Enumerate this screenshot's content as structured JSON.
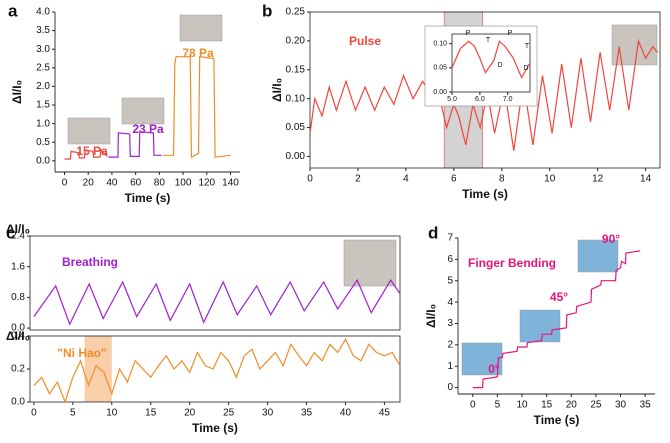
{
  "chart_data": [
    {
      "type": "line",
      "panel": "a",
      "xlabel": "Time (s)",
      "ylabel": "ΔI/I₀",
      "xlim": [
        -8,
        148
      ],
      "xticks": [
        0,
        20,
        40,
        60,
        80,
        100,
        120,
        140
      ],
      "ylim": [
        -0.3,
        4
      ],
      "yticks": [
        {
          "value": 0,
          "label": "0.0"
        },
        0.5,
        {
          "value": 1,
          "label": "1.0"
        },
        1.5,
        {
          "value": 2,
          "label": "2.0"
        },
        2.5,
        {
          "value": 3,
          "label": "3.0"
        },
        3.5,
        {
          "value": 4,
          "label": "4.0"
        }
      ],
      "series": [
        {
          "name": "15 Pa",
          "color": "#f0463c",
          "x": [
            0,
            5,
            5.5,
            12,
            12.5,
            17,
            17.5,
            24,
            24.5,
            30,
            30.5,
            36
          ],
          "values": [
            0.05,
            0.05,
            0.25,
            0.22,
            0.08,
            0.08,
            0.28,
            0.26,
            0.1,
            0.1,
            0.3,
            0.12
          ]
        },
        {
          "name": "23 Pa",
          "color": "#a020d0",
          "x": [
            37,
            45,
            45.5,
            55,
            55.5,
            63,
            63.5,
            75,
            75.5,
            82
          ],
          "values": [
            0.1,
            0.1,
            0.75,
            0.72,
            0.12,
            0.12,
            0.78,
            0.75,
            0.15,
            0.15
          ]
        },
        {
          "name": "78 Pa",
          "color": "#f08c28",
          "x": [
            83,
            92,
            93,
            94,
            106,
            107,
            113,
            114,
            126,
            127,
            140
          ],
          "values": [
            0.15,
            0.15,
            2.6,
            2.8,
            2.8,
            0.1,
            0.2,
            2.8,
            2.75,
            0.1,
            0.15
          ]
        }
      ]
    },
    {
      "type": "line",
      "panel": "b",
      "xlabel": "Time (s)",
      "ylabel": "ΔI/I₀",
      "xlim": [
        0,
        14.6
      ],
      "xticks": [
        0,
        2,
        4,
        6,
        8,
        10,
        12,
        14
      ],
      "ylim": [
        -0.02,
        0.25
      ],
      "yticks": [
        {
          "value": 0,
          "label": "0.00"
        },
        0.05,
        {
          "value": 0.1,
          "label": "0.10"
        },
        0.15,
        {
          "value": 0.2,
          "label": "0.20"
        },
        0.25
      ],
      "highlight": [
        5.6,
        7.2
      ],
      "series": [
        {
          "name": "Pulse",
          "color": "#f0463c",
          "x": [
            0,
            0.2,
            0.5,
            0.8,
            1.1,
            1.5,
            1.9,
            2.3,
            2.7,
            3.1,
            3.5,
            3.9,
            4.3,
            4.7,
            5.0,
            5.3,
            5.7,
            6.0,
            6.2,
            6.5,
            6.8,
            7.1,
            7.4,
            7.7,
            8.1,
            8.5,
            8.9,
            9.3,
            9.7,
            10.1,
            10.5,
            10.9,
            11.3,
            11.7,
            12.1,
            12.5,
            12.9,
            13.3,
            13.7,
            14.0,
            14.3,
            14.5
          ],
          "values": [
            0.04,
            0.1,
            0.07,
            0.12,
            0.08,
            0.13,
            0.08,
            0.12,
            0.08,
            0.12,
            0.09,
            0.14,
            0.1,
            0.13,
            0.11,
            0.12,
            0.05,
            0.09,
            0.07,
            0.02,
            0.09,
            0.05,
            0.11,
            0.04,
            0.12,
            0.01,
            0.13,
            0.02,
            0.14,
            0.04,
            0.16,
            0.05,
            0.17,
            0.06,
            0.18,
            0.08,
            0.19,
            0.08,
            0.2,
            0.17,
            0.19,
            0.18
          ]
        }
      ]
    },
    {
      "type": "line",
      "xlim": [
        5,
        7.8
      ],
      "xticks": [
        {
          "value": 5,
          "label": "5.0"
        },
        {
          "value": 6,
          "label": "6.0"
        },
        {
          "value": 7,
          "label": "7.0"
        }
      ],
      "ylim": [
        0,
        0.12
      ],
      "yticks": [
        {
          "value": 0,
          "label": "0.00"
        },
        0.05,
        {
          "value": 0.1,
          "label": "0.10"
        }
      ],
      "annotations": [
        "P",
        "T",
        "D",
        "P",
        "T",
        "D"
      ],
      "series": [
        {
          "color": "#f0463c",
          "x": [
            5.0,
            5.3,
            5.6,
            5.8,
            6.0,
            6.2,
            6.5,
            6.7,
            6.9,
            7.2,
            7.5,
            7.8
          ],
          "values": [
            0.05,
            0.09,
            0.105,
            0.095,
            0.07,
            0.04,
            0.065,
            0.105,
            0.095,
            0.07,
            0.03,
            0.06
          ]
        }
      ]
    },
    {
      "type": "line",
      "panel": "c",
      "ylabel": "ΔI/I₀",
      "xlim": [
        -0.5,
        47
      ],
      "ylim": [
        -0.05,
        2.4
      ],
      "yticks": [
        {
          "value": 0,
          "label": "0.0"
        },
        0.8,
        1.6,
        2.4
      ],
      "series": [
        {
          "name": "Breathing",
          "color": "#a020d0",
          "x": [
            0,
            2.8,
            4.6,
            7.1,
            8.9,
            11.4,
            13.2,
            15.7,
            17.5,
            20,
            21.8,
            24.3,
            26.1,
            28.6,
            30.4,
            32.9,
            34.7,
            37.2,
            39,
            41.5,
            43.3,
            45.8,
            47
          ],
          "values": [
            0.3,
            1.1,
            0.1,
            1.15,
            0.25,
            1.2,
            0.3,
            1.15,
            0.2,
            1.15,
            0.15,
            1.2,
            0.35,
            1.1,
            0.35,
            1.2,
            0.45,
            1.2,
            0.5,
            1.25,
            0.4,
            1.25,
            0.9
          ]
        }
      ]
    },
    {
      "type": "line",
      "xlabel": "Time (s)",
      "ylabel": "ΔI/I₀",
      "xlim": [
        -0.5,
        47
      ],
      "xticks": [
        0,
        5,
        10,
        15,
        20,
        25,
        30,
        35,
        40,
        45
      ],
      "ylim": [
        0,
        0.4
      ],
      "yticks": [
        {
          "value": 0,
          "label": "0.0"
        },
        0.2,
        0.4
      ],
      "highlight": [
        6.5,
        10
      ],
      "series": [
        {
          "name": "\"Ni Hao\"",
          "color": "#f08c28",
          "x": [
            0,
            1,
            2,
            3,
            4,
            5,
            6,
            7,
            8,
            9,
            10,
            11,
            12,
            13,
            14,
            15,
            16,
            17,
            18,
            19,
            20,
            21,
            22,
            23,
            24,
            25,
            26,
            27,
            28,
            29,
            30,
            31,
            32,
            33,
            34,
            35,
            36,
            37,
            38,
            39,
            40,
            41,
            42,
            43,
            44,
            45,
            46,
            47
          ],
          "values": [
            0.1,
            0.15,
            0.05,
            0.12,
            0.0,
            0.15,
            0.25,
            0.1,
            0.22,
            0.18,
            0.05,
            0.2,
            0.12,
            0.25,
            0.2,
            0.15,
            0.22,
            0.28,
            0.2,
            0.25,
            0.18,
            0.3,
            0.22,
            0.2,
            0.3,
            0.25,
            0.15,
            0.28,
            0.32,
            0.2,
            0.25,
            0.3,
            0.22,
            0.35,
            0.28,
            0.22,
            0.3,
            0.25,
            0.35,
            0.3,
            0.38,
            0.28,
            0.25,
            0.35,
            0.3,
            0.28,
            0.3,
            0.22
          ]
        }
      ]
    },
    {
      "type": "line",
      "panel": "d",
      "xlabel": "Time (s)",
      "ylabel": "ΔI/I₀",
      "xlim": [
        -3,
        37
      ],
      "xticks": [
        0,
        5,
        10,
        15,
        20,
        25,
        30,
        35
      ],
      "ylim": [
        -0.3,
        7
      ],
      "yticks": [
        0,
        1,
        2,
        3,
        4,
        5,
        6,
        7
      ],
      "annotations": [
        "0°",
        "45°",
        "90°"
      ],
      "series": [
        {
          "name": "Finger Bending",
          "color": "#e8147c",
          "x": [
            0,
            2,
            2.1,
            5,
            5.2,
            6,
            6.1,
            9,
            9.1,
            11,
            11.1,
            14,
            14.1,
            16,
            16.1,
            19,
            19.1,
            21,
            21.1,
            24,
            24.1,
            26,
            26.1,
            29,
            29.1,
            30,
            30.2,
            31,
            31.1,
            34
          ],
          "values": [
            0.0,
            0.0,
            0.4,
            0.5,
            1.4,
            1.4,
            1.6,
            1.7,
            1.9,
            1.9,
            2.1,
            2.2,
            2.5,
            2.5,
            2.7,
            2.8,
            3.4,
            3.5,
            3.8,
            4.0,
            4.6,
            4.8,
            5.0,
            5.0,
            5.5,
            5.6,
            5.9,
            5.8,
            6.3,
            6.4
          ]
        }
      ]
    }
  ]
}
